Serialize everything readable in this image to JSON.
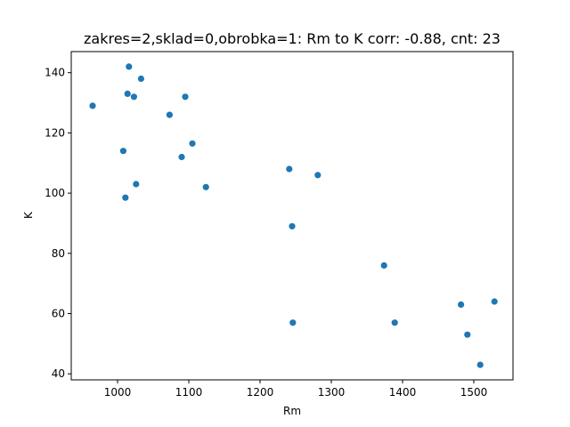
{
  "chart_data": {
    "type": "scatter",
    "title": "zakres=2,sklad=0,obrobka=1: Rm to K corr: -0.88, cnt: 23",
    "xlabel": "Rm",
    "ylabel": "K",
    "xlim": [
      935,
      1555
    ],
    "ylim": [
      38,
      147
    ],
    "xticks": [
      1000,
      1100,
      1200,
      1300,
      1400,
      1500
    ],
    "yticks": [
      40,
      60,
      80,
      100,
      120,
      140
    ],
    "grid": false,
    "marker_color": "#1f77b4",
    "points": [
      {
        "x": 965,
        "y": 129
      },
      {
        "x": 1016,
        "y": 142
      },
      {
        "x": 1033,
        "y": 138
      },
      {
        "x": 1014,
        "y": 133
      },
      {
        "x": 1023,
        "y": 132
      },
      {
        "x": 1095,
        "y": 132
      },
      {
        "x": 1073,
        "y": 126
      },
      {
        "x": 1105,
        "y": 116.5
      },
      {
        "x": 1008,
        "y": 114
      },
      {
        "x": 1090,
        "y": 112
      },
      {
        "x": 1026,
        "y": 103
      },
      {
        "x": 1124,
        "y": 102
      },
      {
        "x": 1011,
        "y": 98.5
      },
      {
        "x": 1241,
        "y": 108
      },
      {
        "x": 1281,
        "y": 106
      },
      {
        "x": 1245,
        "y": 89
      },
      {
        "x": 1374,
        "y": 76
      },
      {
        "x": 1246,
        "y": 57
      },
      {
        "x": 1389,
        "y": 57
      },
      {
        "x": 1482,
        "y": 63
      },
      {
        "x": 1529,
        "y": 64
      },
      {
        "x": 1491,
        "y": 53
      },
      {
        "x": 1509,
        "y": 43
      }
    ]
  }
}
